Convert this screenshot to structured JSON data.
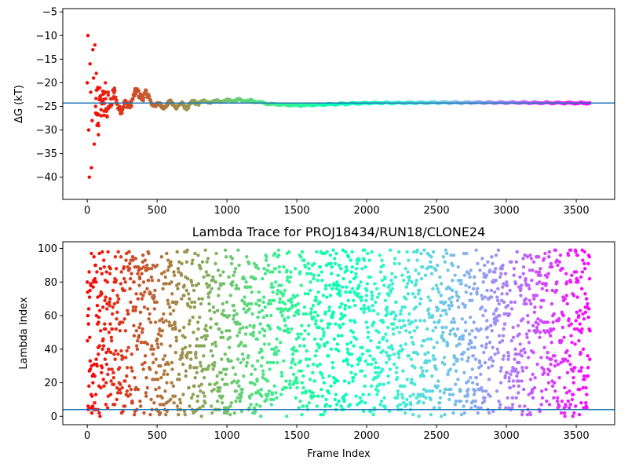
{
  "chart_data": [
    {
      "type": "scatter",
      "title": "",
      "xlabel": "",
      "ylabel": "ΔG (kT)",
      "xlim": [
        -175,
        3775
      ],
      "ylim": [
        -44.7,
        -4.3
      ],
      "xticks": [
        0,
        500,
        1000,
        1500,
        2000,
        2500,
        3000,
        3500
      ],
      "yticks": [
        -40,
        -35,
        -30,
        -25,
        -20,
        -15,
        -10,
        -5
      ],
      "hline": -24.3,
      "hline_color": "#1f77b4",
      "frame_count": 3600,
      "colormap": "rainbow",
      "grid": false,
      "legend": "none",
      "series": [
        {
          "x": [
            0,
            5,
            10,
            15,
            20,
            25,
            30,
            35,
            40,
            45,
            50,
            55,
            60,
            65,
            70,
            75,
            80,
            90,
            100,
            110,
            120,
            130,
            140,
            150,
            170,
            200,
            250,
            300,
            380,
            500,
            600,
            700,
            800,
            900,
            1000,
            1100,
            1200,
            1300,
            1500,
            1700,
            2000,
            2500,
            3000,
            3500,
            3600
          ],
          "y": [
            -20,
            -10,
            -30,
            -40,
            -16,
            -22,
            -38,
            -28,
            -13,
            -19,
            -33,
            -12,
            -25,
            -18,
            -29,
            -21,
            -31,
            -23,
            -27,
            -24,
            -26,
            -20,
            -27,
            -22,
            -26,
            -23,
            -26,
            -24,
            -22,
            -25,
            -24.5,
            -25,
            -24,
            -24,
            -23.8,
            -23.7,
            -23.9,
            -24.5,
            -24.8,
            -24.6,
            -24.3,
            -24.2,
            -24.2,
            -24.3,
            -24.3
          ]
        }
      ]
    },
    {
      "type": "scatter",
      "title": "Lambda Trace for PROJ18434/RUN18/CLONE24",
      "xlabel": "Frame Index",
      "ylabel": "Lambda Index",
      "xlim": [
        -175,
        3775
      ],
      "ylim": [
        -5,
        104
      ],
      "xticks": [
        0,
        500,
        1000,
        1500,
        2000,
        2500,
        3000,
        3500
      ],
      "yticks": [
        0,
        20,
        40,
        60,
        80,
        100
      ],
      "hline": 4,
      "hline_color": "#1f77b4",
      "frame_count": 3600,
      "lambda_range": [
        0,
        99
      ],
      "colormap": "rainbow",
      "grid": false,
      "legend": "none"
    }
  ]
}
